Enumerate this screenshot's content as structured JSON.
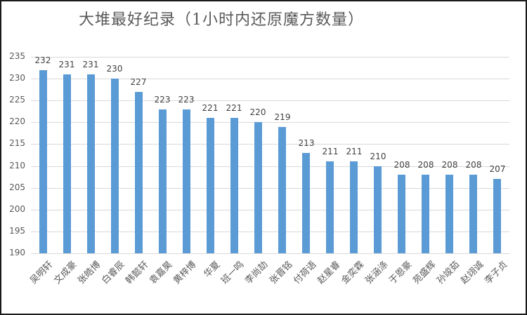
{
  "chart_data": {
    "type": "bar",
    "title": "大堆最好纪录（1小时内还原魔方数量）",
    "xlabel": "",
    "ylabel": "",
    "ylim": [
      190,
      235
    ],
    "yticks": [
      190,
      195,
      200,
      205,
      210,
      215,
      220,
      225,
      230,
      235
    ],
    "grid": true,
    "legend": null,
    "bar_color": "#5b9bd5",
    "data_labels": true,
    "categories": [
      "吴明轩",
      "文成豪",
      "张皓博",
      "白睿辰",
      "韩懿轩",
      "袁嘉昊",
      "黄梓博",
      "华夏",
      "班一鸣",
      "李尚劼",
      "张晋铭",
      "付荷语",
      "赵星睿",
      "金奕霖",
      "张涵涤",
      "于恩豪",
      "苑盛辉",
      "孙竣茹",
      "赵翊诚",
      "李子贞"
    ],
    "values": [
      232,
      231,
      231,
      230,
      227,
      223,
      223,
      221,
      221,
      220,
      219,
      213,
      211,
      211,
      210,
      208,
      208,
      208,
      208,
      207
    ]
  }
}
